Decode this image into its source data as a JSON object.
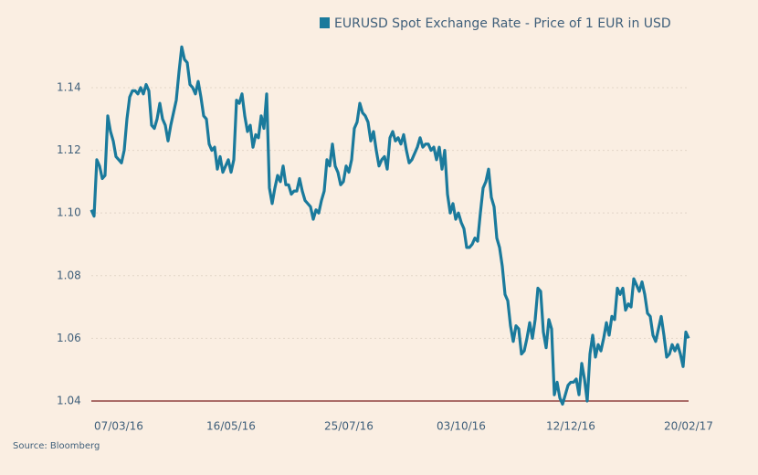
{
  "chart_data": {
    "type": "line",
    "series": [
      {
        "name": "EURUSD Spot Exchange Rate - Price of 1 EUR in USD",
        "color": "#1a7a9c",
        "values": [
          1.101,
          1.099,
          1.117,
          1.115,
          1.111,
          1.112,
          1.131,
          1.126,
          1.123,
          1.118,
          1.117,
          1.116,
          1.12,
          1.13,
          1.137,
          1.139,
          1.139,
          1.138,
          1.14,
          1.138,
          1.141,
          1.139,
          1.128,
          1.127,
          1.13,
          1.135,
          1.13,
          1.128,
          1.123,
          1.128,
          1.132,
          1.136,
          1.145,
          1.153,
          1.149,
          1.148,
          1.141,
          1.14,
          1.138,
          1.142,
          1.137,
          1.131,
          1.13,
          1.122,
          1.12,
          1.121,
          1.114,
          1.118,
          1.113,
          1.115,
          1.117,
          1.113,
          1.117,
          1.136,
          1.135,
          1.138,
          1.131,
          1.126,
          1.128,
          1.121,
          1.125,
          1.124,
          1.131,
          1.127,
          1.138,
          1.108,
          1.103,
          1.108,
          1.112,
          1.11,
          1.115,
          1.109,
          1.109,
          1.106,
          1.107,
          1.107,
          1.111,
          1.107,
          1.104,
          1.103,
          1.102,
          1.098,
          1.101,
          1.1,
          1.104,
          1.107,
          1.117,
          1.115,
          1.122,
          1.115,
          1.113,
          1.109,
          1.11,
          1.115,
          1.113,
          1.117,
          1.127,
          1.129,
          1.135,
          1.132,
          1.131,
          1.129,
          1.123,
          1.126,
          1.12,
          1.115,
          1.117,
          1.118,
          1.114,
          1.124,
          1.126,
          1.123,
          1.124,
          1.122,
          1.125,
          1.12,
          1.116,
          1.117,
          1.119,
          1.121,
          1.124,
          1.121,
          1.122,
          1.122,
          1.12,
          1.121,
          1.117,
          1.121,
          1.114,
          1.12,
          1.106,
          1.1,
          1.103,
          1.098,
          1.1,
          1.097,
          1.095,
          1.089,
          1.089,
          1.09,
          1.092,
          1.091,
          1.1,
          1.108,
          1.11,
          1.114,
          1.105,
          1.102,
          1.092,
          1.089,
          1.083,
          1.074,
          1.072,
          1.064,
          1.059,
          1.064,
          1.063,
          1.055,
          1.056,
          1.06,
          1.065,
          1.06,
          1.066,
          1.076,
          1.075,
          1.062,
          1.057,
          1.066,
          1.063,
          1.042,
          1.046,
          1.041,
          1.039,
          1.042,
          1.045,
          1.046,
          1.046,
          1.047,
          1.042,
          1.052,
          1.047,
          1.04,
          1.055,
          1.061,
          1.054,
          1.058,
          1.056,
          1.06,
          1.065,
          1.061,
          1.067,
          1.066,
          1.076,
          1.074,
          1.076,
          1.069,
          1.071,
          1.07,
          1.079,
          1.077,
          1.075,
          1.078,
          1.074,
          1.068,
          1.067,
          1.061,
          1.059,
          1.063,
          1.067,
          1.061,
          1.054,
          1.055,
          1.058,
          1.056,
          1.058,
          1.055,
          1.051,
          1.062,
          1.06
        ]
      }
    ],
    "categories": [
      null,
      null,
      null,
      null,
      null,
      null,
      null,
      null,
      null,
      null,
      "07/03/16",
      null,
      null,
      null,
      null,
      null,
      null,
      null,
      null,
      null,
      null,
      null,
      null,
      null,
      null,
      null,
      null,
      null,
      null,
      null,
      null,
      null,
      null,
      null,
      null,
      null,
      null,
      null,
      null,
      null,
      null,
      null,
      null,
      null,
      null,
      null,
      null,
      null,
      null,
      null,
      null,
      "16/05/16",
      null,
      null,
      null,
      null,
      null,
      null,
      null,
      null,
      null,
      null,
      null,
      null,
      null,
      null,
      null,
      null,
      null,
      null,
      null,
      null,
      null,
      null,
      null,
      null,
      null,
      null,
      null,
      null,
      null,
      null,
      null,
      null,
      null,
      null,
      null,
      null,
      null,
      null,
      null,
      null,
      null,
      null,
      "25/07/16",
      null,
      null,
      null,
      null,
      null,
      null,
      null,
      null,
      null,
      null,
      null,
      null,
      null,
      null,
      null,
      null,
      null,
      null,
      null,
      null,
      null,
      null,
      null,
      null,
      null,
      null,
      null,
      null,
      null,
      null,
      null,
      null,
      null,
      null,
      null,
      null,
      null,
      null,
      null,
      null,
      "03/10/16",
      null,
      null,
      null,
      null,
      null,
      null,
      null,
      null,
      null,
      null,
      null,
      null,
      null,
      null,
      null,
      null,
      null,
      null,
      null,
      null,
      null,
      null,
      null,
      null,
      null,
      null,
      null,
      null,
      null,
      null,
      null,
      null,
      null,
      null,
      null,
      null,
      null,
      null,
      null,
      "12/12/16",
      null,
      null,
      null,
      null,
      null,
      null,
      null,
      null,
      null,
      null,
      null,
      null,
      null,
      null,
      null,
      null,
      null,
      null,
      null,
      null,
      null,
      null,
      null,
      null,
      null,
      null,
      null,
      null,
      null,
      null,
      null,
      null,
      null,
      null,
      null,
      null,
      null,
      null,
      null,
      null,
      null,
      null,
      "20/02/17"
    ],
    "ylim": [
      1.04,
      1.155
    ],
    "yticks": [
      1.04,
      1.06,
      1.08,
      {
        "value": 1.1,
        "label": "1.10"
      },
      1.12,
      1.14
    ],
    "grid": true,
    "source": "Source: Bloomberg"
  }
}
